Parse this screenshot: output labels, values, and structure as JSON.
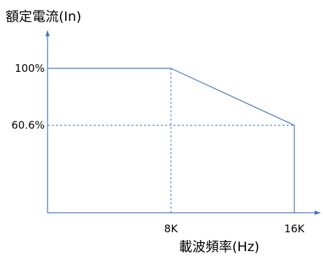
{
  "chart_data": {
    "type": "line",
    "ylabel": "額定電流(In)",
    "xlabel": "載波頻率(Hz)",
    "x_tick_labels": [
      "8K",
      "16K"
    ],
    "y_tick_labels": [
      "100%",
      "60.6%"
    ],
    "series": [
      {
        "x": [
          0,
          8,
          16,
          16
        ],
        "y": [
          100,
          100,
          60.6,
          0
        ]
      }
    ],
    "reference_lines": [
      {
        "orientation": "vertical",
        "x": 8
      },
      {
        "orientation": "horizontal",
        "y": 60.6
      }
    ],
    "xlim": [
      0,
      16
    ],
    "ylim": [
      0,
      100
    ],
    "grid": false,
    "colors": {
      "line": "#4472c4",
      "axis": "#4472c4",
      "text": "#000000"
    }
  }
}
